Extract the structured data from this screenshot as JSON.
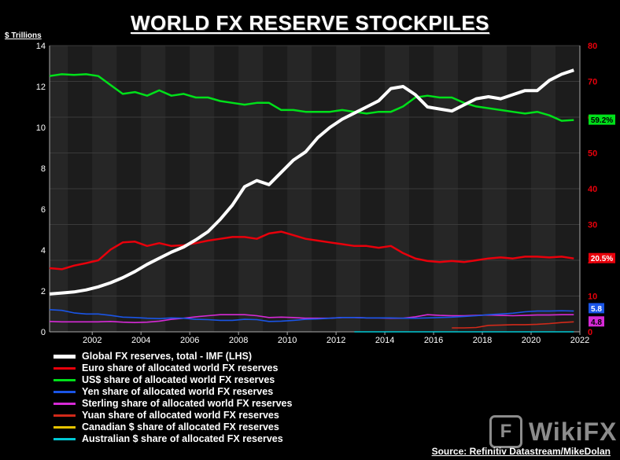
{
  "title": "WORLD FX RESERVE STOCKPILES",
  "source": "Source: Refinitiv Datastream/MikeDolan",
  "watermark": "WikiFX",
  "chart_data": {
    "type": "line",
    "ylabel_left": "$ Trillions",
    "ylim_left": [
      0,
      14
    ],
    "yticks_left": [
      0,
      2,
      4,
      6,
      8,
      10,
      12,
      14
    ],
    "ylim_right": [
      0,
      80
    ],
    "yticks_right": [
      0,
      10,
      20,
      30,
      40,
      50,
      60,
      70,
      80
    ],
    "xlim": [
      2000.25,
      2022.0
    ],
    "xticks": [
      2002,
      2004,
      2006,
      2008,
      2010,
      2012,
      2014,
      2016,
      2018,
      2020,
      2022
    ],
    "series": [
      {
        "name": "Global FX reserves, total - IMF (LHS)",
        "axis": "left",
        "color": "#ffffff",
        "x": [
          2000.25,
          2000.75,
          2001.25,
          2001.75,
          2002.25,
          2002.75,
          2003.25,
          2003.75,
          2004.25,
          2004.75,
          2005.25,
          2005.75,
          2006.25,
          2006.75,
          2007.25,
          2007.75,
          2008.25,
          2008.75,
          2009.25,
          2009.75,
          2010.25,
          2010.75,
          2011.25,
          2011.75,
          2012.25,
          2012.75,
          2013.25,
          2013.75,
          2014.25,
          2014.75,
          2015.25,
          2015.75,
          2016.25,
          2016.75,
          2017.25,
          2017.75,
          2018.25,
          2018.75,
          2019.25,
          2019.75,
          2020.25,
          2020.75,
          2021.25,
          2021.75
        ],
        "y": [
          1.85,
          1.9,
          1.95,
          2.05,
          2.2,
          2.4,
          2.65,
          2.95,
          3.3,
          3.6,
          3.9,
          4.15,
          4.5,
          4.9,
          5.5,
          6.2,
          7.1,
          7.4,
          7.2,
          7.8,
          8.4,
          8.8,
          9.5,
          10.0,
          10.4,
          10.7,
          11.0,
          11.3,
          11.9,
          12.0,
          11.6,
          11.0,
          10.9,
          10.8,
          11.1,
          11.4,
          11.5,
          11.4,
          11.6,
          11.8,
          11.8,
          12.3,
          12.6,
          12.8
        ],
        "end_label": ""
      },
      {
        "name": "Euro share of allocated world FX reserves",
        "axis": "right",
        "color": "#e8000b",
        "x": [
          2000.25,
          2000.75,
          2001.25,
          2001.75,
          2002.25,
          2002.75,
          2003.25,
          2003.75,
          2004.25,
          2004.75,
          2005.25,
          2005.75,
          2006.25,
          2006.75,
          2007.25,
          2007.75,
          2008.25,
          2008.75,
          2009.25,
          2009.75,
          2010.25,
          2010.75,
          2011.25,
          2011.75,
          2012.25,
          2012.75,
          2013.25,
          2013.75,
          2014.25,
          2014.75,
          2015.25,
          2015.75,
          2016.25,
          2016.75,
          2017.25,
          2017.75,
          2018.25,
          2018.75,
          2019.25,
          2019.75,
          2020.25,
          2020.75,
          2021.25,
          2021.75
        ],
        "y": [
          17.8,
          17.5,
          18.5,
          19.2,
          20.0,
          23.0,
          25.0,
          25.2,
          24.0,
          24.8,
          24.0,
          24.2,
          24.8,
          25.5,
          26.0,
          26.5,
          26.5,
          26.0,
          27.5,
          28.0,
          27.0,
          26.0,
          25.5,
          25.0,
          24.5,
          24.0,
          24.0,
          23.5,
          24.0,
          22.0,
          20.5,
          19.8,
          19.5,
          19.8,
          19.5,
          20.0,
          20.5,
          20.8,
          20.5,
          21.0,
          21.0,
          20.8,
          21.0,
          20.5
        ],
        "end_label": "20.5%"
      },
      {
        "name": "US$ share of allocated world FX reserves",
        "axis": "right",
        "color": "#00e01a",
        "x": [
          2000.25,
          2000.75,
          2001.25,
          2001.75,
          2002.25,
          2002.75,
          2003.25,
          2003.75,
          2004.25,
          2004.75,
          2005.25,
          2005.75,
          2006.25,
          2006.75,
          2007.25,
          2007.75,
          2008.25,
          2008.75,
          2009.25,
          2009.75,
          2010.25,
          2010.75,
          2011.25,
          2011.75,
          2012.25,
          2012.75,
          2013.25,
          2013.75,
          2014.25,
          2014.75,
          2015.25,
          2015.75,
          2016.25,
          2016.75,
          2017.25,
          2017.75,
          2018.25,
          2018.75,
          2019.25,
          2019.75,
          2020.25,
          2020.75,
          2021.25,
          2021.75
        ],
        "y": [
          71.5,
          72.0,
          71.8,
          72.0,
          71.5,
          69.0,
          66.5,
          67.0,
          66.0,
          67.5,
          66.0,
          66.5,
          65.5,
          65.5,
          64.5,
          64.0,
          63.5,
          64.0,
          64.0,
          62.0,
          62.0,
          61.5,
          61.5,
          61.5,
          62.0,
          61.5,
          61.0,
          61.5,
          61.5,
          63.0,
          65.5,
          66.0,
          65.5,
          65.5,
          64.0,
          63.0,
          62.5,
          62.0,
          61.5,
          61.0,
          61.5,
          60.5,
          59.0,
          59.2
        ],
        "end_label": "59.2%"
      },
      {
        "name": "Yen share of allocated world FX reserves",
        "axis": "right",
        "color": "#1a55e6",
        "x": [
          2000.25,
          2000.75,
          2001.25,
          2001.75,
          2002.25,
          2002.75,
          2003.25,
          2003.75,
          2004.25,
          2004.75,
          2005.25,
          2005.75,
          2006.25,
          2006.75,
          2007.25,
          2007.75,
          2008.25,
          2008.75,
          2009.25,
          2009.75,
          2010.25,
          2010.75,
          2011.25,
          2011.75,
          2012.25,
          2012.75,
          2013.25,
          2013.75,
          2014.25,
          2014.75,
          2015.25,
          2015.75,
          2016.25,
          2016.75,
          2017.25,
          2017.75,
          2018.25,
          2018.75,
          2019.25,
          2019.75,
          2020.25,
          2020.75,
          2021.25,
          2021.75
        ],
        "y": [
          6.2,
          6.0,
          5.3,
          5.0,
          5.0,
          4.6,
          4.1,
          4.0,
          3.8,
          3.7,
          3.9,
          3.8,
          3.5,
          3.4,
          3.2,
          3.2,
          3.5,
          3.4,
          2.9,
          3.0,
          3.2,
          3.5,
          3.6,
          3.8,
          4.0,
          4.0,
          3.9,
          3.9,
          3.9,
          3.8,
          3.8,
          3.9,
          4.0,
          4.1,
          4.3,
          4.5,
          4.8,
          5.0,
          5.2,
          5.6,
          5.8,
          5.8,
          5.9,
          5.8
        ],
        "end_label": "5.8"
      },
      {
        "name": "Sterling share of allocated world FX reserves",
        "axis": "right",
        "color": "#d62ad6",
        "x": [
          2000.25,
          2000.75,
          2001.25,
          2001.75,
          2002.25,
          2002.75,
          2003.25,
          2003.75,
          2004.25,
          2004.75,
          2005.25,
          2005.75,
          2006.25,
          2006.75,
          2007.25,
          2007.75,
          2008.25,
          2008.75,
          2009.25,
          2009.75,
          2010.25,
          2010.75,
          2011.25,
          2011.75,
          2012.25,
          2012.75,
          2013.25,
          2013.75,
          2014.25,
          2014.75,
          2015.25,
          2015.75,
          2016.25,
          2016.75,
          2017.25,
          2017.75,
          2018.25,
          2018.75,
          2019.25,
          2019.75,
          2020.25,
          2020.75,
          2021.25,
          2021.75
        ],
        "y": [
          2.9,
          2.8,
          2.8,
          2.8,
          2.8,
          2.9,
          2.7,
          2.6,
          2.7,
          3.0,
          3.5,
          3.8,
          4.2,
          4.5,
          4.8,
          4.8,
          4.8,
          4.5,
          4.0,
          4.1,
          4.0,
          3.8,
          3.8,
          3.8,
          4.0,
          4.0,
          3.9,
          3.9,
          3.8,
          3.8,
          4.2,
          4.8,
          4.6,
          4.5,
          4.5,
          4.6,
          4.7,
          4.6,
          4.5,
          4.6,
          4.7,
          4.7,
          4.8,
          4.8
        ],
        "end_label": "4.8"
      },
      {
        "name": "Yuan share of allocated world FX reserves",
        "axis": "right",
        "color": "#d12a1a",
        "x": [
          2016.75,
          2017.25,
          2017.75,
          2018.25,
          2018.75,
          2019.25,
          2019.75,
          2020.25,
          2020.75,
          2021.25,
          2021.75
        ],
        "y": [
          1.1,
          1.1,
          1.2,
          1.8,
          1.9,
          2.0,
          2.0,
          2.1,
          2.3,
          2.6,
          2.8
        ],
        "end_label": ""
      },
      {
        "name": "Canadian $ share of allocated FX reserves",
        "axis": "right",
        "color": "#e6c300",
        "x": [],
        "y": [],
        "end_label": ""
      },
      {
        "name": "Australian $ share of allocated FX reserves",
        "axis": "right",
        "color": "#00c8d4",
        "x": [
          2012.75,
          2013.75,
          2014.75,
          2015.75,
          2016.75,
          2017.75,
          2018.75,
          2019.75,
          2020.75,
          2021.75
        ],
        "y": [
          0.0,
          0.0,
          0.0,
          0.0,
          0.0,
          0.0,
          0.0,
          0.0,
          0.0,
          0.0
        ],
        "end_label": ""
      }
    ],
    "legend_position": "bottom-left",
    "grid": true
  }
}
